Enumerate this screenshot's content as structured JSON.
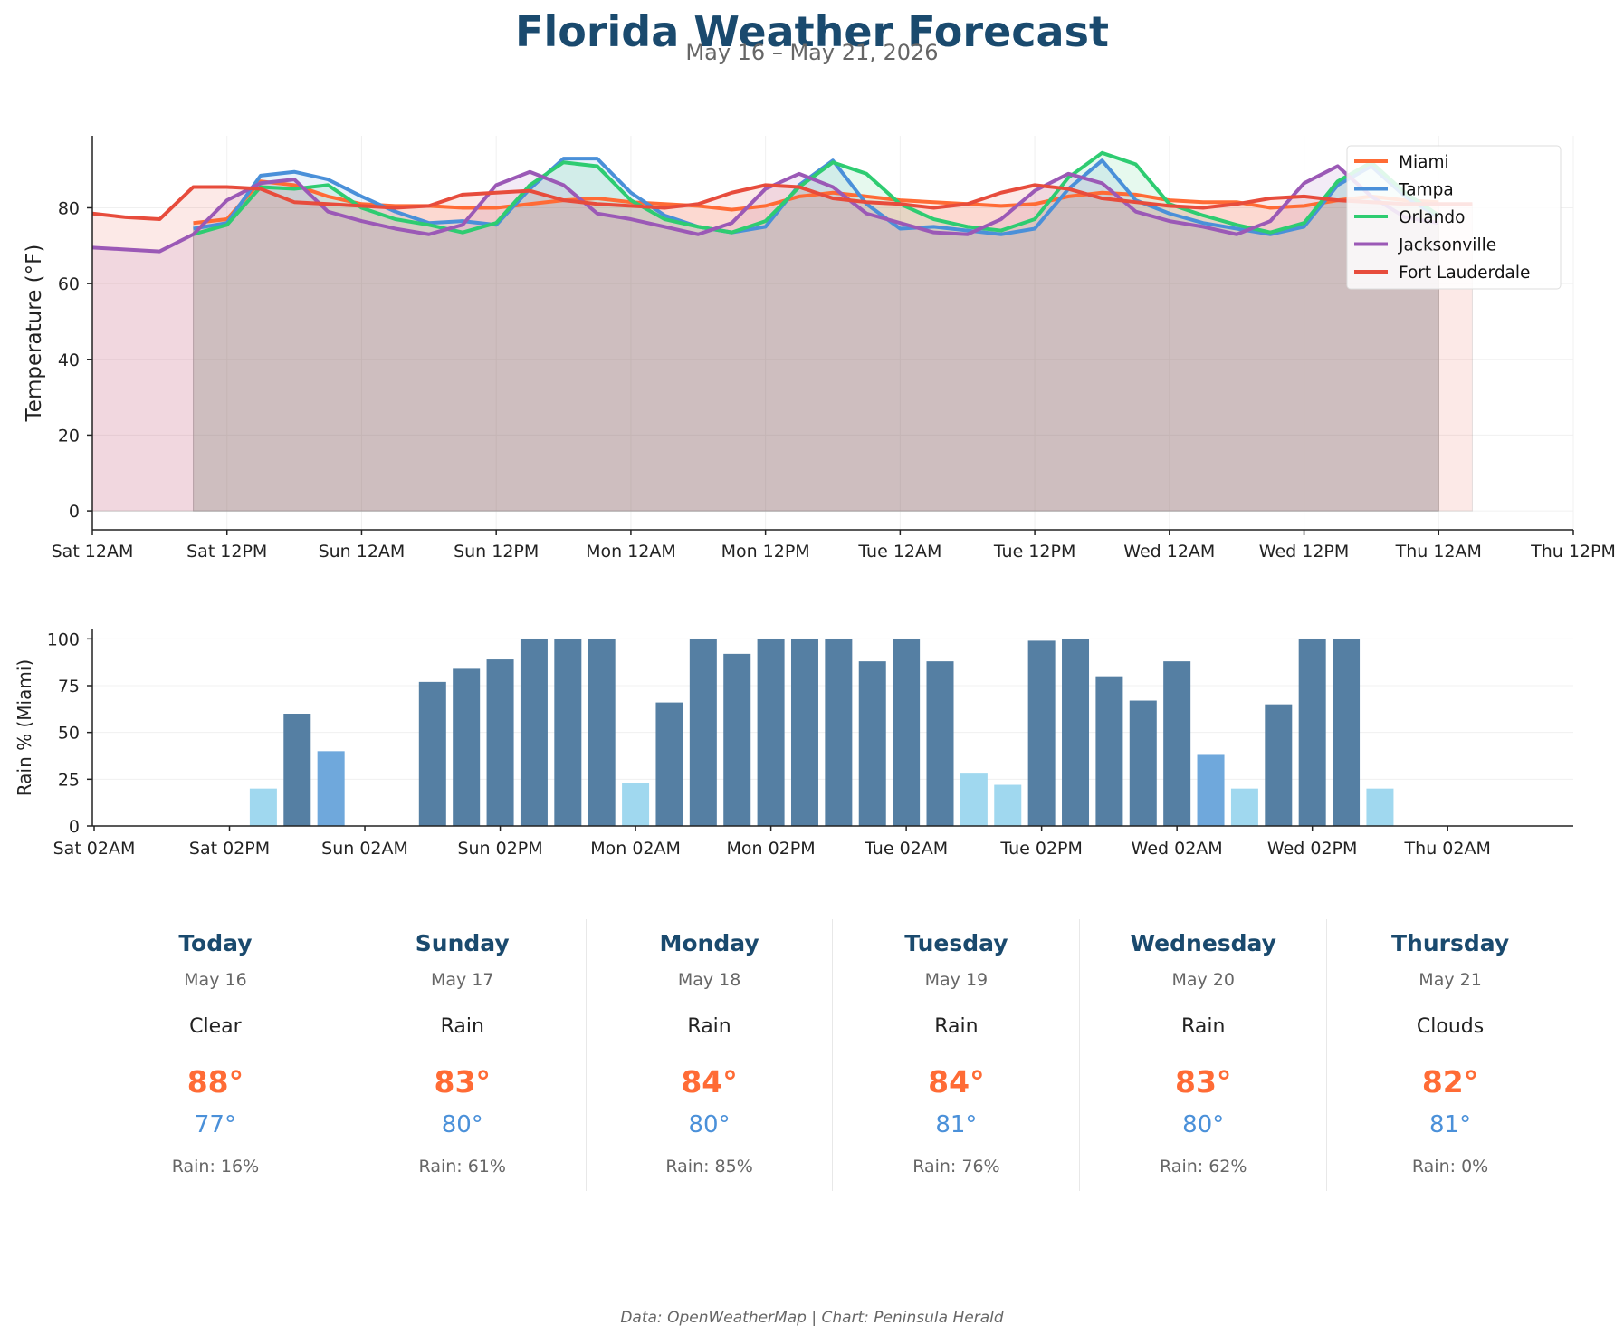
{
  "header": {
    "title": "Florida Weather Forecast",
    "subtitle": "May 16 – May 21, 2026"
  },
  "chart_data": [
    {
      "type": "line",
      "ylabel": "Temperature (°F)",
      "xlabel": "",
      "ylim": [
        -5,
        99
      ],
      "yticks": [
        0,
        20,
        40,
        60,
        80
      ],
      "x_unit": "hours since Sat 12AM",
      "xticks": [
        {
          "hour": 0,
          "label": "Sat 12AM"
        },
        {
          "hour": 12,
          "label": "Sat 12PM"
        },
        {
          "hour": 24,
          "label": "Sun 12AM"
        },
        {
          "hour": 36,
          "label": "Sun 12PM"
        },
        {
          "hour": 48,
          "label": "Mon 12AM"
        },
        {
          "hour": 60,
          "label": "Mon 12PM"
        },
        {
          "hour": 72,
          "label": "Tue 12AM"
        },
        {
          "hour": 84,
          "label": "Tue 12PM"
        },
        {
          "hour": 96,
          "label": "Wed 12AM"
        },
        {
          "hour": 108,
          "label": "Wed 12PM"
        },
        {
          "hour": 120,
          "label": "Thu 12AM"
        },
        {
          "hour": 132,
          "label": "Thu 12PM"
        }
      ],
      "grid": true,
      "area_fill": true,
      "legend_position": "top-right",
      "series": [
        {
          "name": "Miami",
          "color": "#ff6b35",
          "x": [
            9,
            12,
            15,
            18,
            21,
            24,
            27,
            30,
            33,
            36,
            39,
            42,
            45,
            48,
            51,
            54,
            57,
            60,
            63,
            66,
            69,
            72,
            75,
            78,
            81,
            84,
            87,
            90,
            93,
            96,
            99,
            102,
            105,
            108,
            111,
            114,
            117,
            120
          ],
          "values": [
            76,
            77,
            87,
            86,
            83,
            81,
            80.5,
            80.5,
            80,
            80,
            81,
            82,
            82.5,
            81.5,
            81,
            80.5,
            79.5,
            80.5,
            83,
            84,
            83,
            82,
            81.5,
            81,
            80.5,
            81,
            83,
            84,
            83.5,
            82,
            81.5,
            81.5,
            80,
            80.5,
            82,
            83,
            82,
            81.5
          ]
        },
        {
          "name": "Tampa",
          "color": "#4a90d9",
          "x": [
            9,
            12,
            15,
            18,
            21,
            24,
            27,
            30,
            33,
            36,
            39,
            42,
            45,
            48,
            51,
            54,
            57,
            60,
            63,
            66,
            69,
            72,
            75,
            78,
            81,
            84,
            87,
            90,
            93,
            96,
            99,
            102,
            105,
            108,
            111,
            114,
            117,
            120
          ],
          "values": [
            74.5,
            76,
            88.5,
            89.5,
            87.5,
            83,
            79,
            76,
            76.5,
            75.5,
            85,
            93,
            93,
            84,
            78,
            75,
            73.5,
            75,
            86,
            92.5,
            81,
            74.5,
            75,
            74,
            73,
            74.5,
            85,
            92.5,
            82,
            78.5,
            76,
            74.5,
            73,
            75,
            86,
            91,
            83,
            77.5
          ]
        },
        {
          "name": "Orlando",
          "color": "#2ecc71",
          "x": [
            9,
            12,
            15,
            18,
            21,
            24,
            27,
            30,
            33,
            36,
            39,
            42,
            45,
            48,
            51,
            54,
            57,
            60,
            63,
            66,
            69,
            72,
            75,
            78,
            81,
            84,
            87,
            90,
            93,
            96,
            99,
            102,
            105,
            108,
            111,
            114,
            117,
            120
          ],
          "values": [
            73,
            75.5,
            85.5,
            85,
            86,
            80,
            77,
            75.5,
            73.5,
            76,
            86,
            92,
            91,
            82,
            77,
            75,
            73.5,
            76.5,
            85.5,
            92,
            89,
            81,
            77,
            75,
            74,
            77,
            88,
            94.5,
            91.5,
            81,
            78,
            75.5,
            73.5,
            76,
            87,
            92,
            84,
            78
          ]
        },
        {
          "name": "Jacksonville",
          "color": "#9b59b6",
          "x": [
            0,
            3,
            6,
            9,
            12,
            15,
            18,
            21,
            24,
            27,
            30,
            33,
            36,
            39,
            42,
            45,
            48,
            51,
            54,
            57,
            60,
            63,
            66,
            69,
            72,
            75,
            78,
            81,
            84,
            87,
            90,
            93,
            96,
            99,
            102,
            105,
            108,
            111,
            114,
            117,
            120
          ],
          "values": [
            69.5,
            69,
            68.5,
            73,
            82,
            86.5,
            87.5,
            79,
            76.5,
            74.5,
            73,
            75.5,
            86,
            89.5,
            86,
            78.5,
            77,
            75,
            73,
            76,
            85,
            89,
            85.5,
            78.5,
            76,
            73.5,
            73,
            77,
            84.5,
            89,
            86.5,
            79,
            76.5,
            75,
            73,
            76.5,
            86.5,
            91,
            83,
            77.5,
            76
          ]
        },
        {
          "name": "Fort Lauderdale",
          "color": "#e74c3c",
          "x": [
            0,
            3,
            6,
            9,
            12,
            15,
            18,
            21,
            24,
            27,
            30,
            33,
            36,
            39,
            42,
            45,
            48,
            51,
            54,
            57,
            60,
            63,
            66,
            69,
            72,
            75,
            78,
            81,
            84,
            87,
            90,
            93,
            96,
            99,
            102,
            105,
            108,
            111,
            114,
            117,
            120,
            123
          ],
          "values": [
            78.5,
            77.5,
            77,
            85.5,
            85.5,
            85,
            81.5,
            81,
            80.5,
            80,
            80.5,
            83.5,
            84,
            84.5,
            82,
            81,
            80.5,
            80,
            81,
            84,
            86,
            85.5,
            82.5,
            81.5,
            81,
            80,
            81,
            84,
            86,
            85,
            82.5,
            81.5,
            80.5,
            80,
            81,
            82.5,
            83,
            82,
            81.5,
            81,
            81,
            81
          ]
        }
      ]
    },
    {
      "type": "bar",
      "ylabel": "Rain % (Miami)",
      "xlabel": "",
      "ylim": [
        0,
        105
      ],
      "yticks": [
        0,
        25,
        50,
        75,
        100
      ],
      "x_unit": "hours since Sat 02AM",
      "xticks": [
        {
          "hour": 0,
          "label": "Sat 02AM"
        },
        {
          "hour": 12,
          "label": "Sat 02PM"
        },
        {
          "hour": 24,
          "label": "Sun 02AM"
        },
        {
          "hour": 36,
          "label": "Sun 02PM"
        },
        {
          "hour": 48,
          "label": "Mon 02AM"
        },
        {
          "hour": 60,
          "label": "Mon 02PM"
        },
        {
          "hour": 72,
          "label": "Tue 02AM"
        },
        {
          "hour": 84,
          "label": "Tue 02PM"
        },
        {
          "hour": 96,
          "label": "Wed 02AM"
        },
        {
          "hour": 108,
          "label": "Wed 02PM"
        },
        {
          "hour": 120,
          "label": "Thu 02AM"
        }
      ],
      "grid": true,
      "colors": {
        "high": "#557fa3",
        "medium": "#6fa8dc",
        "low": "#a0d8ef"
      },
      "x": [
        15,
        18,
        21,
        24,
        27,
        30,
        33,
        36,
        39,
        42,
        45,
        48,
        51,
        54,
        57,
        60,
        63,
        66,
        69,
        72,
        75,
        78,
        81,
        84,
        87,
        90,
        93,
        96,
        99,
        102,
        105,
        108,
        111,
        114,
        117,
        120,
        123,
        126
      ],
      "values": [
        20,
        60,
        40,
        0,
        0,
        77,
        84,
        89,
        100,
        100,
        100,
        23,
        66,
        100,
        92,
        100,
        100,
        100,
        88,
        100,
        88,
        28,
        22,
        99,
        100,
        80,
        67,
        88,
        38,
        20,
        65,
        100,
        100,
        20,
        0,
        0,
        0,
        0
      ],
      "levels": [
        "low",
        "high",
        "medium",
        "low",
        "low",
        "high",
        "high",
        "high",
        "high",
        "high",
        "high",
        "low",
        "high",
        "high",
        "high",
        "high",
        "high",
        "high",
        "high",
        "high",
        "high",
        "low",
        "low",
        "high",
        "high",
        "high",
        "high",
        "high",
        "medium",
        "low",
        "high",
        "high",
        "high",
        "low",
        "low",
        "low",
        "low",
        "low"
      ]
    }
  ],
  "forecast": [
    {
      "day": "Today",
      "date": "May 16",
      "condition": "Clear",
      "high": "88°",
      "low": "77°",
      "rain": "Rain: 16%"
    },
    {
      "day": "Sunday",
      "date": "May 17",
      "condition": "Rain",
      "high": "83°",
      "low": "80°",
      "rain": "Rain: 61%"
    },
    {
      "day": "Monday",
      "date": "May 18",
      "condition": "Rain",
      "high": "84°",
      "low": "80°",
      "rain": "Rain: 85%"
    },
    {
      "day": "Tuesday",
      "date": "May 19",
      "condition": "Rain",
      "high": "84°",
      "low": "81°",
      "rain": "Rain: 76%"
    },
    {
      "day": "Wednesday",
      "date": "May 20",
      "condition": "Rain",
      "high": "83°",
      "low": "80°",
      "rain": "Rain: 62%"
    },
    {
      "day": "Thursday",
      "date": "May 21",
      "condition": "Clouds",
      "high": "82°",
      "low": "81°",
      "rain": "Rain: 0%"
    }
  ],
  "footer": "Data: OpenWeatherMap | Chart: Peninsula Herald"
}
